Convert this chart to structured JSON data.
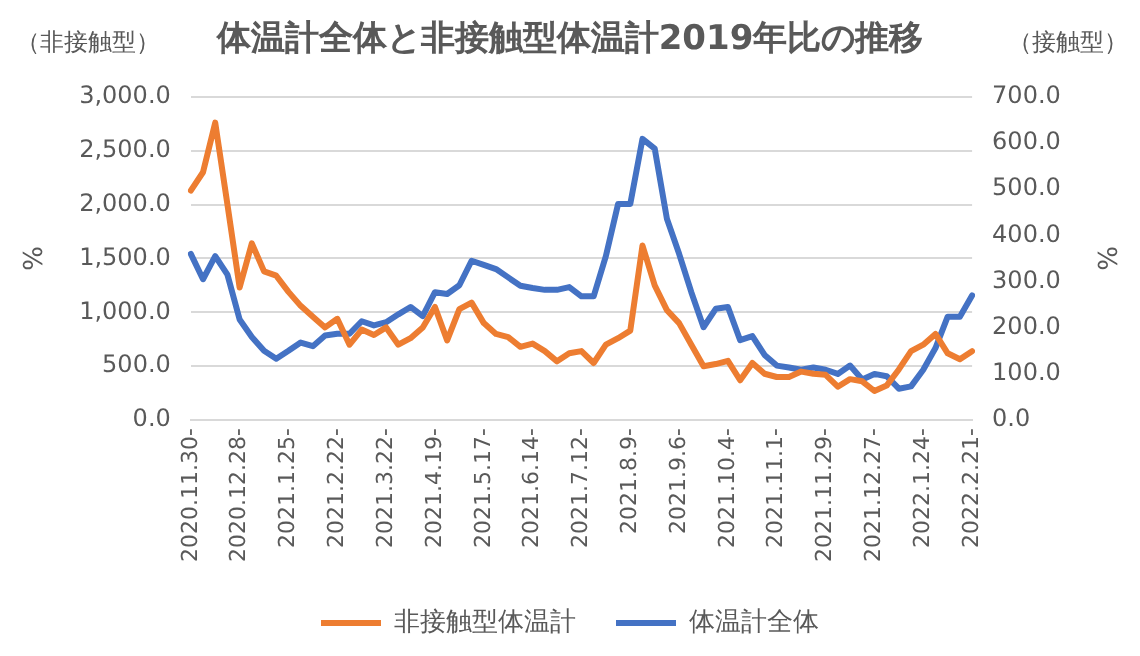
{
  "chart_data": {
    "type": "line",
    "title": "体温計全体と非接触型体温計2019年比の推移",
    "ylabel": "%",
    "y2label": "%",
    "annotations": [
      "（非接触型）",
      "（接触型）"
    ],
    "categories": [
      "2020.11.30-",
      null,
      null,
      null,
      "2020.12.28-",
      null,
      null,
      null,
      "2021.1.25-",
      null,
      null,
      null,
      "2021.2.22-",
      null,
      null,
      null,
      "2021.3.22-",
      null,
      null,
      null,
      "2021.4.19-",
      null,
      null,
      null,
      "2021.5.17-",
      null,
      null,
      null,
      "2021.6.14-",
      null,
      null,
      null,
      "2021.7.12-",
      null,
      null,
      null,
      "2021.8.9-",
      null,
      null,
      null,
      "2021.9.6-",
      null,
      null,
      null,
      "2021.10.4-",
      null,
      null,
      null,
      "2021.11.1-",
      null,
      null,
      null,
      "2021.11.29-",
      null,
      null,
      null,
      "2021.12.27-",
      null,
      null,
      null,
      "2022.1.24-",
      null,
      null,
      null,
      "2022.2.21-"
    ],
    "series": [
      {
        "name": "非接触型体温計",
        "color": "#ed7d31",
        "values": [
          2130,
          2300,
          2760,
          2000,
          1230,
          1640,
          1380,
          1340,
          1190,
          1060,
          960,
          860,
          940,
          700,
          840,
          790,
          860,
          700,
          760,
          860,
          1050,
          740,
          1030,
          1090,
          900,
          800,
          770,
          680,
          710,
          640,
          545,
          620,
          640,
          530,
          700,
          760,
          830,
          1620,
          1250,
          1020,
          900,
          700,
          500,
          520,
          550,
          370,
          530,
          430,
          400,
          400,
          450,
          430,
          420,
          310,
          380,
          360,
          270,
          320,
          470,
          640,
          700,
          800,
          620,
          565,
          640
        ]
      },
      {
        "name": "体温計全体",
        "color": "#4472c4",
        "axis": "y2",
        "values": [
          360,
          305,
          355,
          315,
          218,
          180,
          150,
          133,
          150,
          168,
          160,
          183,
          187,
          187,
          214,
          205,
          212,
          229,
          245,
          225,
          277,
          273,
          292,
          345,
          336,
          327,
          309,
          291,
          286,
          282,
          282,
          288,
          268,
          268,
          355,
          468,
          468,
          609,
          588,
          436,
          360,
          277,
          201,
          241,
          245,
          173,
          182,
          141,
          118,
          114,
          109,
          114,
          109,
          100,
          118,
          88,
          100,
          95,
          68,
          73,
          109,
          156,
          224,
          224,
          270
        ]
      }
    ],
    "ylim": [
      0,
      3000
    ],
    "yticks": [
      {
        "value": 0,
        "label": "0.0"
      },
      {
        "value": 500,
        "label": "500.0"
      },
      {
        "value": 1000,
        "label": "1,000.0"
      },
      {
        "value": 1500,
        "label": "1,500.0"
      },
      {
        "value": 2000,
        "label": "2,000.0"
      },
      {
        "value": 2500,
        "label": "2,500.0"
      },
      {
        "value": 3000,
        "label": "3,000.0"
      }
    ],
    "y2lim": [
      0,
      700
    ],
    "y2ticks": [
      {
        "value": 0,
        "label": "0.0"
      },
      {
        "value": 100,
        "label": "100.0"
      },
      {
        "value": 200,
        "label": "200.0"
      },
      {
        "value": 300,
        "label": "300.0"
      },
      {
        "value": 400,
        "label": "400.0"
      },
      {
        "value": 500,
        "label": "500.0"
      },
      {
        "value": 600,
        "label": "600.0"
      },
      {
        "value": 700,
        "label": "700.0"
      }
    ],
    "grid": "y",
    "legend": "bottom",
    "marker": "none",
    "line_style": "solid"
  }
}
